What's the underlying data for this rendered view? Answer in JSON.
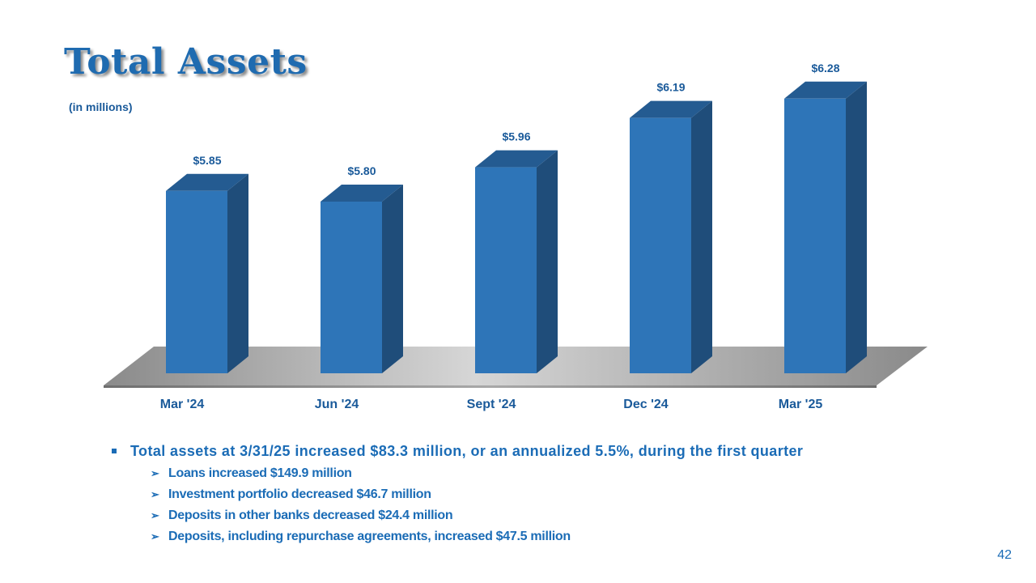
{
  "slide": {
    "title": "Total Assets",
    "units": "(in millions)",
    "page_number": "42"
  },
  "colors": {
    "title": "#1f6bb0",
    "bar_front": "#2e75b8",
    "bar_side": "#1f4d7a",
    "bar_top": "#245b91",
    "label": "#1a5a9a",
    "bullet": "#1b6cb6"
  },
  "chart_data": {
    "type": "bar",
    "title": "Total Assets",
    "ylabel": "(in millions)",
    "categories": [
      "Mar '24",
      "Jun '24",
      "Sept '24",
      "Dec '24",
      "Mar '25"
    ],
    "values": [
      5.85,
      5.8,
      5.96,
      6.19,
      6.28
    ],
    "data_labels": [
      "$5.85",
      "$5.80",
      "$5.96",
      "$6.19",
      "$6.28"
    ],
    "grid": false,
    "legend": "none"
  },
  "bullets": {
    "main": "Total assets at 3/31/25 increased $83.3 million,  or an annualized 5.5%, during the first quarter",
    "subs": [
      "Loans increased $149.9 million",
      "Investment portfolio decreased $46.7 million",
      "Deposits in other banks decreased $24.4 million",
      "Deposits, including repurchase agreements, increased $47.5 million"
    ]
  }
}
